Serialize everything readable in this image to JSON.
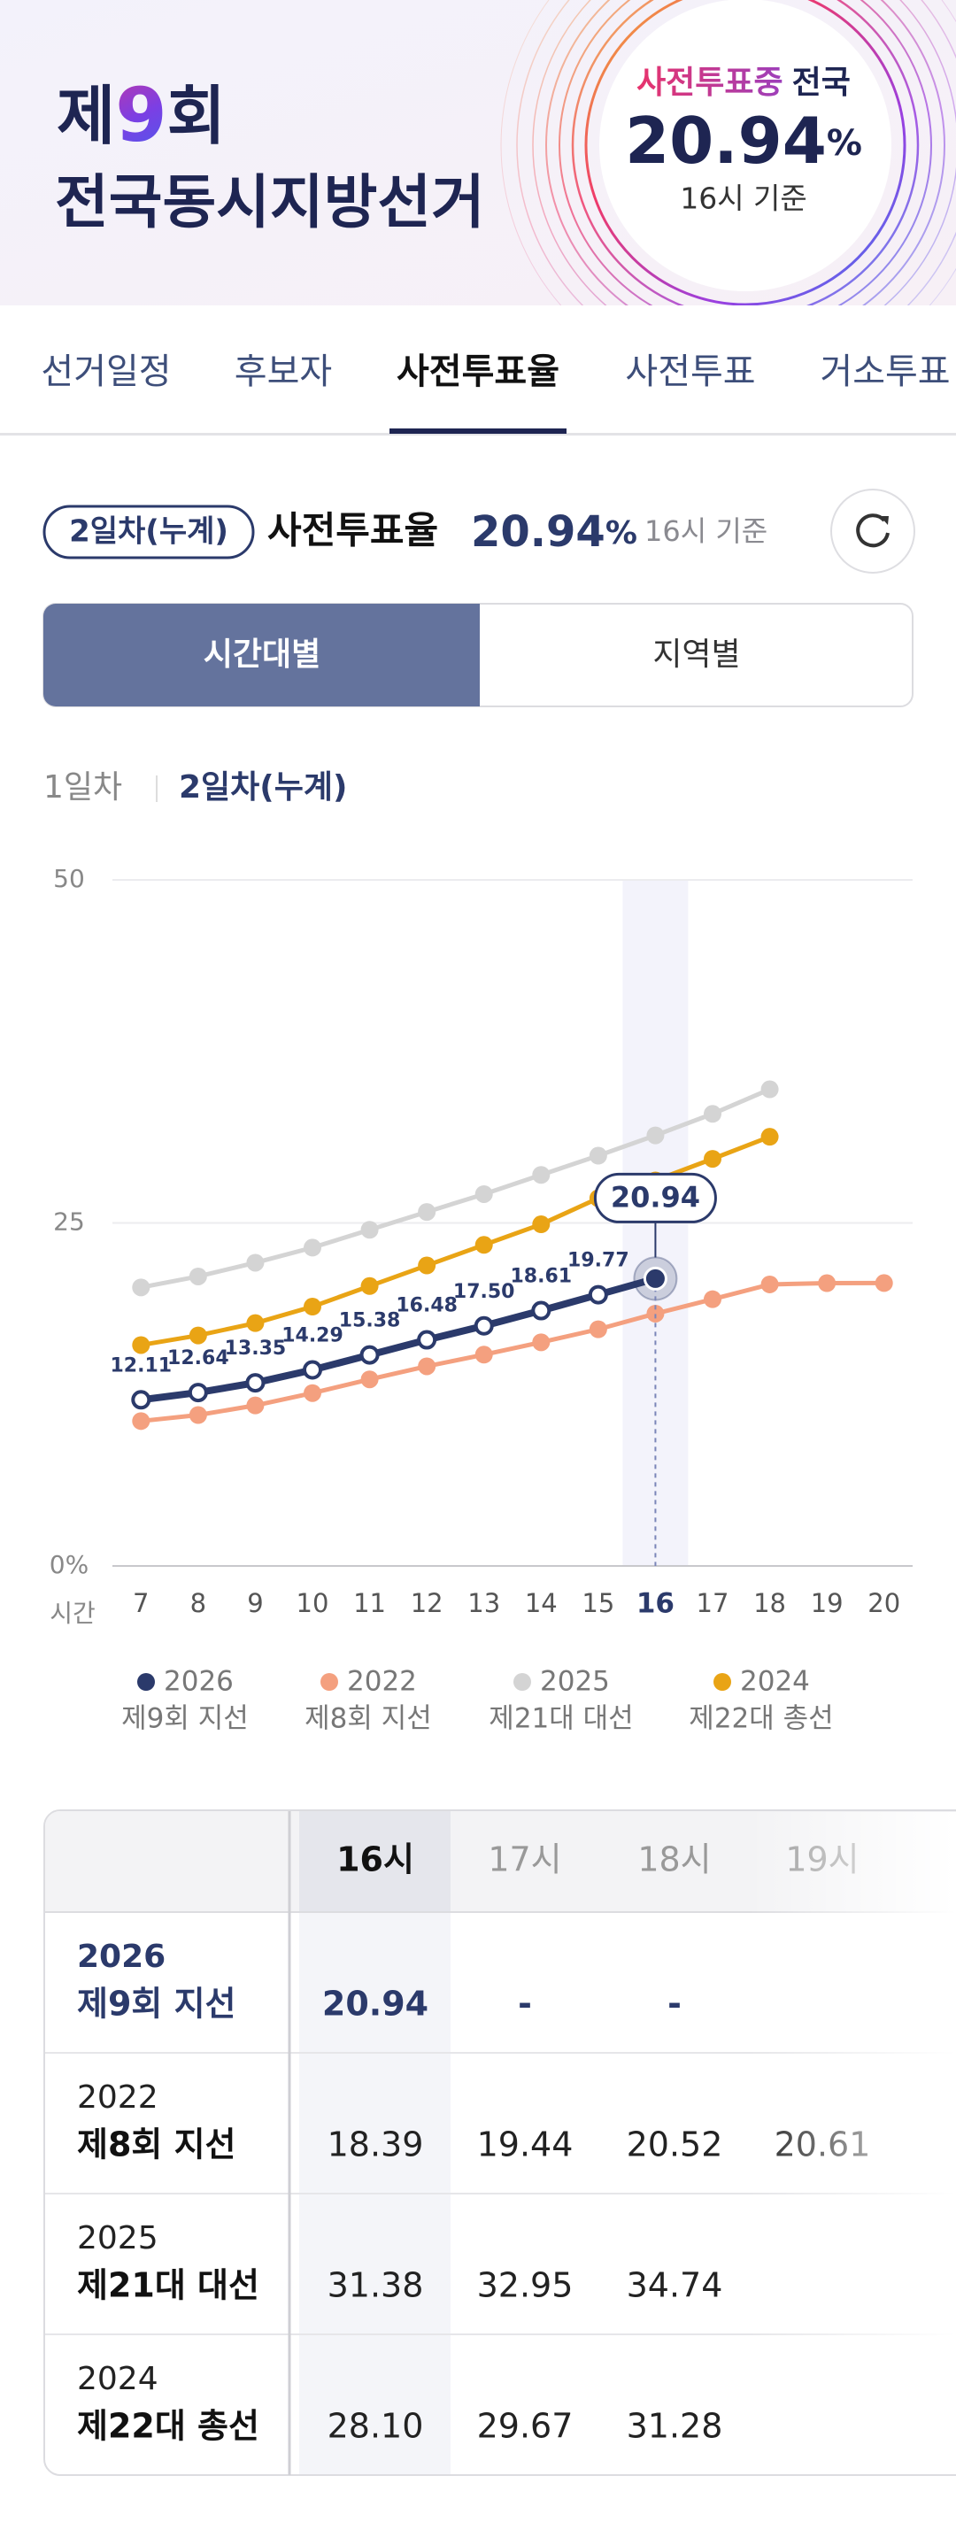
{
  "header": {
    "title_prefix": "제",
    "title_number": "9",
    "title_suffix": "회",
    "title_line2": "전국동시지방선거",
    "badge": {
      "status": "사전투표중",
      "scope": "전국",
      "rate": "20.94",
      "unit": "%",
      "basis": "16시 기준"
    }
  },
  "tabs": [
    "선거일정",
    "후보자",
    "사전투표율",
    "사전투표",
    "거소투표"
  ],
  "summary": {
    "pill": "2일차(누계)",
    "label": "사전투표율",
    "rate": "20.94",
    "unit": "%",
    "basis": "16시 기준"
  },
  "segments": [
    "시간대별",
    "지역별"
  ],
  "day_tabs": [
    "1일차",
    "2일차(누계)"
  ],
  "chart_data": {
    "type": "line",
    "x_label": "시간",
    "x": [
      7,
      8,
      9,
      10,
      11,
      12,
      13,
      14,
      15,
      16,
      17,
      18,
      19,
      20
    ],
    "xlim": [
      6.5,
      20.5
    ],
    "xticks": [
      7,
      8,
      9,
      10,
      11,
      12,
      13,
      14,
      15,
      16,
      17,
      18,
      19,
      20
    ],
    "ylim": [
      0,
      50
    ],
    "yticks": [
      {
        "value": 0,
        "label": "0%"
      },
      25,
      50
    ],
    "grid": true,
    "highlight_x": 16,
    "series": [
      {
        "name": "2026",
        "label": "제9회 지선",
        "color": "#2b3a6b",
        "values": [
          12.11,
          12.64,
          13.35,
          14.29,
          15.38,
          16.48,
          17.5,
          18.61,
          19.77,
          20.94,
          null,
          null,
          null,
          null
        ],
        "value_labels": [
          "12.11",
          "12.64",
          "13.35",
          "14.29",
          "15.38",
          "16.48",
          "17.50",
          "18.61",
          "19.77",
          "20.94",
          null,
          null,
          null,
          null
        ]
      },
      {
        "name": "2022",
        "label": "제8회 지선",
        "color": "#f4a07f",
        "values": [
          10.56,
          11.0,
          11.7,
          12.6,
          13.6,
          14.55,
          15.4,
          16.3,
          17.25,
          18.39,
          19.44,
          20.52,
          20.61,
          20.62
        ]
      },
      {
        "name": "2025",
        "label": "제21대 대선",
        "color": "#d4d4d4",
        "values": [
          20.3,
          21.1,
          22.1,
          23.2,
          24.5,
          25.8,
          27.1,
          28.5,
          29.9,
          31.38,
          32.95,
          34.74,
          null,
          null
        ]
      },
      {
        "name": "2024",
        "label": "제22대 총선",
        "color": "#e9a415",
        "values": [
          16.1,
          16.8,
          17.7,
          18.9,
          20.4,
          21.9,
          23.4,
          24.9,
          26.8,
          28.1,
          29.67,
          31.28,
          null,
          null
        ]
      }
    ]
  },
  "table": {
    "columns": [
      "16시",
      "17시",
      "18시",
      "19시"
    ],
    "rows": [
      {
        "year": "2026",
        "name": "제9회 지선",
        "cells": [
          "20.94",
          "-",
          "-"
        ]
      },
      {
        "year": "2022",
        "name": "제8회 지선",
        "cells": [
          "18.39",
          "19.44",
          "20.52",
          "20.61"
        ]
      },
      {
        "year": "2025",
        "name": "제21대 대선",
        "cells": [
          "31.38",
          "32.95",
          "34.74"
        ]
      },
      {
        "year": "2024",
        "name": "제22대 총선",
        "cells": [
          "28.10",
          "29.67",
          "31.28"
        ]
      }
    ]
  }
}
